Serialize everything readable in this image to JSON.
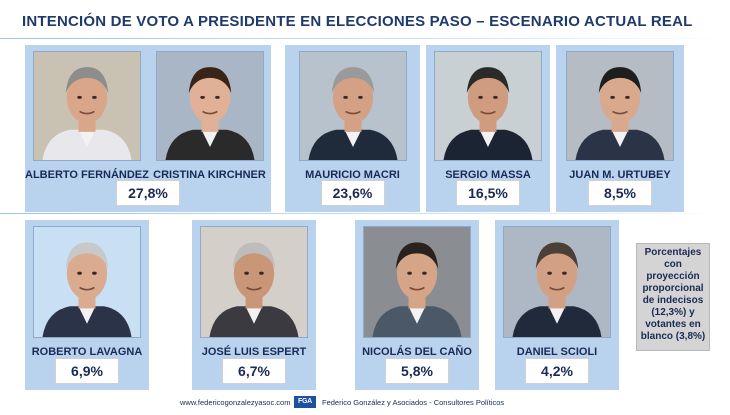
{
  "title": "INTENCIÓN DE VOTO A PRESIDENTE EN ELECCIONES PASO – ESCENARIO ACTUAL REAL",
  "chart_data": {
    "type": "table",
    "title": "INTENCIÓN DE VOTO A PRESIDENTE EN ELECCIONES PASO – ESCENARIO ACTUAL REAL",
    "categories": [
      "ALBERTO FERNÁNDEZ / CRISTINA KIRCHNER",
      "MAURICIO MACRI",
      "SERGIO MASSA",
      "JUAN M. URTUBEY",
      "ROBERTO LAVAGNA",
      "JOSÉ LUIS ESPERT",
      "NICOLÁS DEL CAÑO",
      "DANIEL SCIOLI"
    ],
    "values": [
      27.8,
      23.6,
      16.5,
      8.5,
      6.9,
      6.7,
      5.8,
      4.2
    ],
    "labels": [
      "27,8%",
      "23,6%",
      "16,5%",
      "8,5%",
      "6,9%",
      "6,7%",
      "5,8%",
      "4,2%"
    ],
    "candidates": [
      {
        "name": "ALBERTO FERNÁNDEZ",
        "photo_icon": "candidate-portrait-icon"
      },
      {
        "name": "CRISTINA KIRCHNER",
        "photo_icon": "candidate-portrait-icon"
      },
      {
        "name": "MAURICIO MACRI",
        "photo_icon": "candidate-portrait-icon"
      },
      {
        "name": "SERGIO MASSA",
        "photo_icon": "candidate-portrait-icon"
      },
      {
        "name": "JUAN M. URTUBEY",
        "photo_icon": "candidate-portrait-icon"
      },
      {
        "name": "ROBERTO LAVAGNA",
        "photo_icon": "candidate-portrait-icon"
      },
      {
        "name": "JOSÉ LUIS ESPERT",
        "photo_icon": "candidate-portrait-icon"
      },
      {
        "name": "NICOLÁS DEL CAÑO",
        "photo_icon": "candidate-portrait-icon"
      },
      {
        "name": "DANIEL SCIOLI",
        "photo_icon": "candidate-portrait-icon"
      }
    ]
  },
  "note": "Porcentajes con proyección proporcional de indecisos (12,3%) y votantes en blanco (3,8%)",
  "footer": {
    "url": "www.federicogonzalezyasoc.com",
    "logo": "FGA",
    "firm": "Federico González y Asociados - Consultores Políticos"
  },
  "colors": {
    "panel": "#b9d3ee",
    "title": "#1f3a6b",
    "text": "#1a2a55",
    "note_bg": "#d4d4d4"
  }
}
